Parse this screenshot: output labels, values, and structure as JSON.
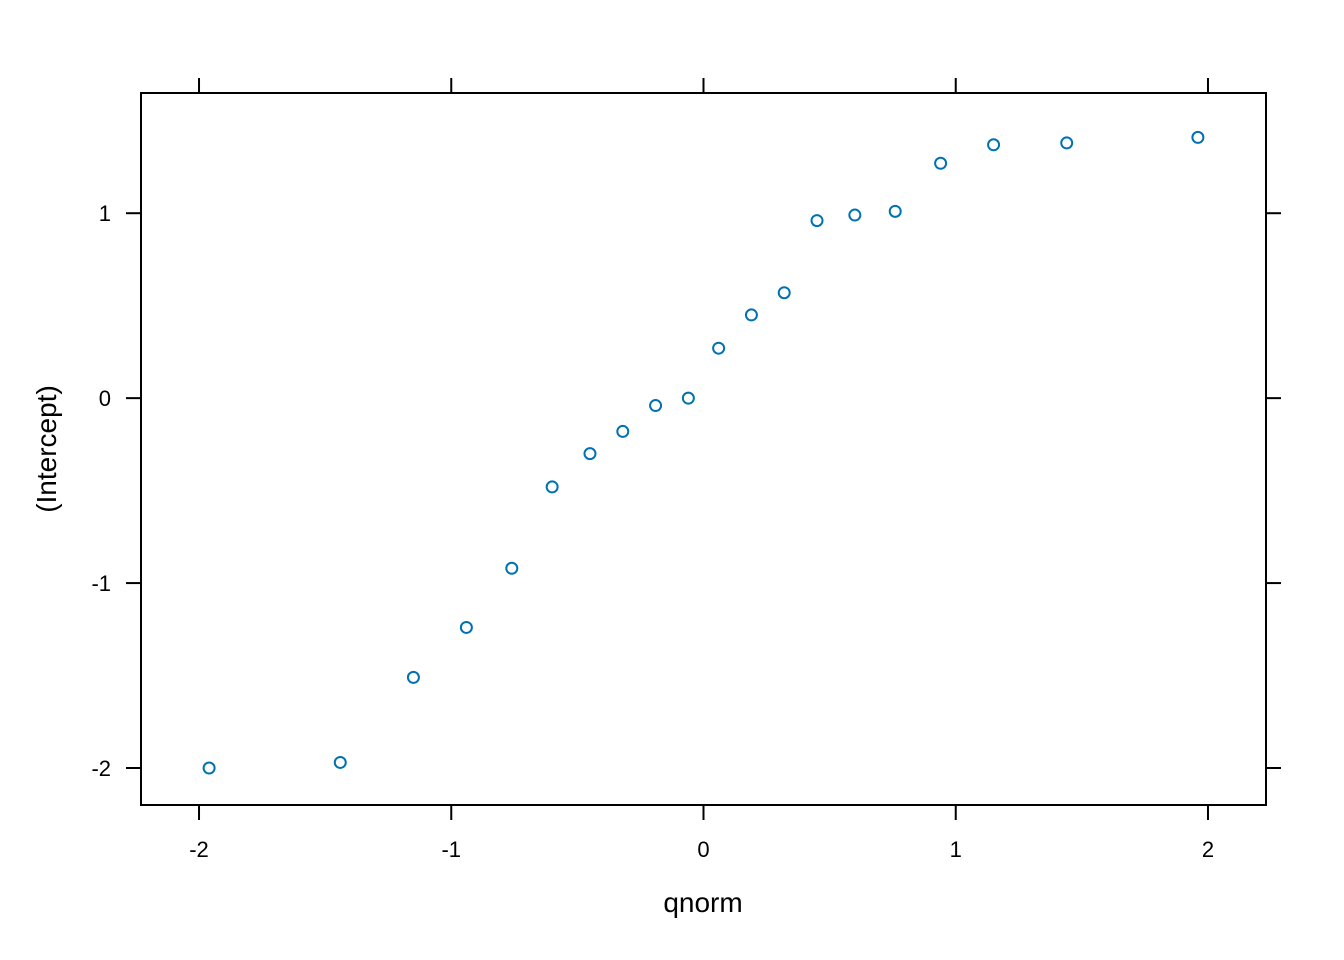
{
  "chart_data": {
    "type": "scatter",
    "title": "",
    "xlabel": "qnorm",
    "ylabel": "(Intercept)",
    "xlim": [
      -2.23,
      2.23
    ],
    "ylim": [
      -2.2,
      1.65
    ],
    "xticks": [
      -2,
      -1,
      0,
      1,
      2
    ],
    "yticks": [
      -2,
      -1,
      0,
      1
    ],
    "xtick_labels": [
      "-2",
      "-1",
      "0",
      "1",
      "2"
    ],
    "ytick_labels": [
      "-2",
      "-1",
      "0",
      "1"
    ],
    "grid": false,
    "point_color": "#0072B2",
    "points": [
      {
        "x": -1.96,
        "y": -2.0
      },
      {
        "x": -1.44,
        "y": -1.97
      },
      {
        "x": -1.15,
        "y": -1.51
      },
      {
        "x": -0.94,
        "y": -1.24
      },
      {
        "x": -0.76,
        "y": -0.92
      },
      {
        "x": -0.6,
        "y": -0.48
      },
      {
        "x": -0.45,
        "y": -0.3
      },
      {
        "x": -0.32,
        "y": -0.18
      },
      {
        "x": -0.19,
        "y": -0.04
      },
      {
        "x": -0.06,
        "y": 0.0
      },
      {
        "x": 0.06,
        "y": 0.27
      },
      {
        "x": 0.19,
        "y": 0.45
      },
      {
        "x": 0.32,
        "y": 0.57
      },
      {
        "x": 0.45,
        "y": 0.96
      },
      {
        "x": 0.6,
        "y": 0.99
      },
      {
        "x": 0.76,
        "y": 1.01
      },
      {
        "x": 0.94,
        "y": 1.27
      },
      {
        "x": 1.15,
        "y": 1.37
      },
      {
        "x": 1.44,
        "y": 1.38
      },
      {
        "x": 1.96,
        "y": 1.41
      }
    ]
  }
}
